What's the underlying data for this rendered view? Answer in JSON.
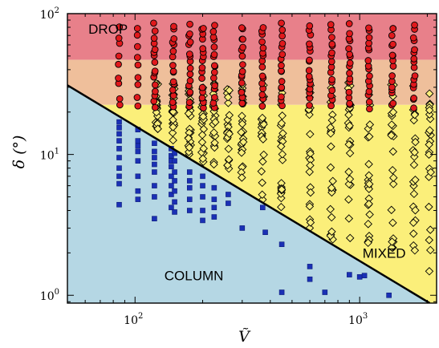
{
  "chart_data": {
    "type": "scatter",
    "title": "",
    "xlabel": "Ṽ",
    "ylabel": "δ (°)",
    "xscale": "log",
    "yscale": "log",
    "xlim": [
      50,
      2200
    ],
    "ylim": [
      0.88,
      100
    ],
    "x_ticks": [
      100,
      1000
    ],
    "y_ticks": [
      1,
      10,
      100
    ],
    "x_tick_labels": [
      {
        "base": "10",
        "exp": "2"
      },
      {
        "base": "10",
        "exp": "3"
      }
    ],
    "y_tick_labels": [
      {
        "base": "10",
        "exp": "0"
      },
      {
        "base": "10",
        "exp": "1"
      },
      {
        "base": "10",
        "exp": "2"
      }
    ],
    "regions": [
      {
        "label": "DROP",
        "color": "#e8808a",
        "y_range": [
          47,
          100
        ]
      },
      {
        "label": "",
        "color": "#efbf9b",
        "y_range": [
          22.5,
          47
        ]
      },
      {
        "label": "MIXED",
        "color": "#fbef7a",
        "y_range": [
          0.88,
          22.5
        ]
      },
      {
        "label": "COLUMN",
        "color": "#b5d7e4",
        "y_range": [
          0.88,
          100
        ]
      }
    ],
    "region_labels": [
      {
        "text": "DROP",
        "x": 62,
        "y": 72
      },
      {
        "text": "COLUMN",
        "x": 135,
        "y": 1.28
      },
      {
        "text": "MIXED",
        "x": 1030,
        "y": 1.85
      }
    ],
    "boundary_line": {
      "x": [
        50,
        2050
      ],
      "y": [
        31,
        0.88
      ],
      "color": "#000000"
    },
    "drop_x": [
      85,
      103,
      122,
      148,
      175,
      200,
      225,
      300,
      370,
      450,
      600,
      750,
      900,
      1100,
      1400,
      1750
    ],
    "mixed_x": [
      125,
      148,
      175,
      200,
      225,
      260,
      300,
      370,
      450,
      600,
      750,
      900,
      1100,
      1400,
      1750,
      2050
    ],
    "column_points": [
      [
        85,
        17
      ],
      [
        85,
        15.5
      ],
      [
        85,
        14
      ],
      [
        85,
        12.5
      ],
      [
        85,
        11
      ],
      [
        85,
        9.5
      ],
      [
        85,
        8
      ],
      [
        85,
        7
      ],
      [
        85,
        6.2
      ],
      [
        85,
        4.4
      ],
      [
        103,
        15
      ],
      [
        103,
        12.5
      ],
      [
        103,
        11.5
      ],
      [
        103,
        10.5
      ],
      [
        103,
        9
      ],
      [
        103,
        7
      ],
      [
        103,
        5.5
      ],
      [
        103,
        4.8
      ],
      [
        122,
        12
      ],
      [
        122,
        10.5
      ],
      [
        122,
        9.5
      ],
      [
        122,
        8.5
      ],
      [
        122,
        7.5
      ],
      [
        122,
        6
      ],
      [
        122,
        5
      ],
      [
        122,
        3.5
      ],
      [
        145,
        11
      ],
      [
        145,
        9.8
      ],
      [
        145,
        9
      ],
      [
        145,
        8.2
      ],
      [
        145,
        7
      ],
      [
        145,
        6
      ],
      [
        145,
        5.2
      ],
      [
        145,
        4.2
      ],
      [
        150,
        10.2
      ],
      [
        150,
        9
      ],
      [
        150,
        7.5
      ],
      [
        150,
        6.5
      ],
      [
        150,
        5.5
      ],
      [
        150,
        4.6
      ],
      [
        150,
        3.9
      ],
      [
        175,
        7.5
      ],
      [
        175,
        6.5
      ],
      [
        175,
        5.8
      ],
      [
        175,
        4.8
      ],
      [
        175,
        4
      ],
      [
        200,
        7
      ],
      [
        200,
        6
      ],
      [
        200,
        5
      ],
      [
        200,
        4
      ],
      [
        200,
        3.4
      ],
      [
        225,
        5.8
      ],
      [
        225,
        4.8
      ],
      [
        225,
        4.2
      ],
      [
        225,
        3.6
      ],
      [
        260,
        5.2
      ],
      [
        260,
        4.5
      ],
      [
        300,
        3
      ],
      [
        370,
        4.2
      ],
      [
        380,
        2.8
      ],
      [
        450,
        2.3
      ],
      [
        450,
        1.05
      ],
      [
        600,
        1.6
      ],
      [
        600,
        1.3
      ],
      [
        700,
        1.05
      ],
      [
        900,
        1.4
      ],
      [
        1000,
        1.35
      ],
      [
        1050,
        1.38
      ],
      [
        1350,
        1.0
      ]
    ]
  }
}
